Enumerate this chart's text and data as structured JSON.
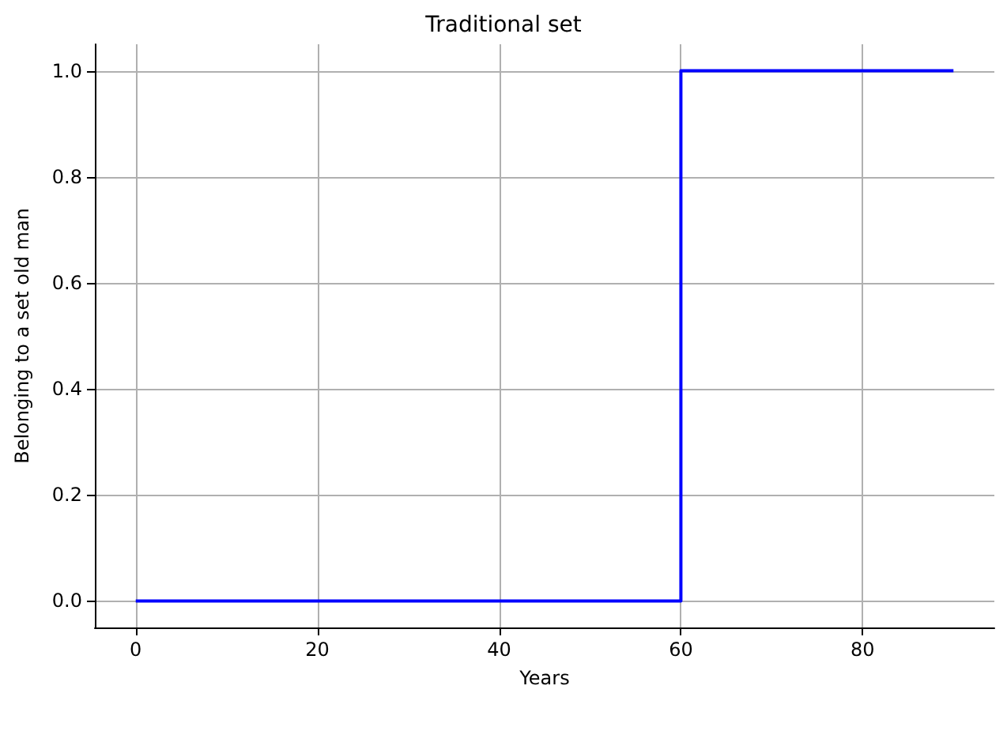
{
  "chart_data": {
    "type": "step",
    "title": "Traditional set",
    "xlabel": "Years",
    "ylabel": "Belonging to a set old man",
    "x": [
      0,
      60,
      90
    ],
    "series": [
      {
        "color": "#0000ff",
        "values": [
          0,
          1,
          1
        ]
      }
    ],
    "xlim": [
      -4.5,
      94.5
    ],
    "xticks": [
      0,
      20,
      40,
      60,
      80
    ],
    "ylim": [
      -0.05,
      1.05
    ],
    "yticks": [
      {
        "value": 0,
        "label": "0.0"
      },
      {
        "value": 0.2,
        "label": "0.2"
      },
      {
        "value": 0.4,
        "label": "0.4"
      },
      {
        "value": 0.6,
        "label": "0.6"
      },
      {
        "value": 0.8,
        "label": "0.8"
      },
      {
        "value": 1,
        "label": "1.0"
      }
    ],
    "grid": true
  }
}
